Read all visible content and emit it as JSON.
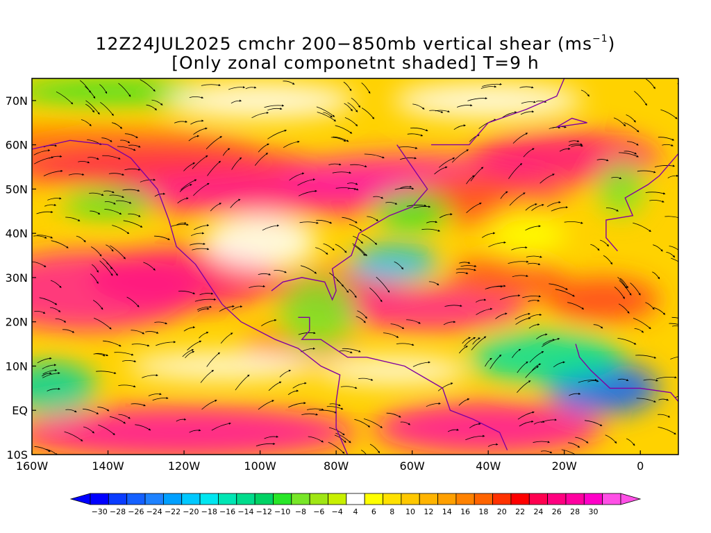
{
  "title": {
    "line1": "12Z24JUL2025 cmchr 200−850mb vertical shear (ms",
    "line1_unit_exp": "−1",
    "line1_close": ")",
    "line2": "[Only zonal componetnt shaded] T=9 h"
  },
  "map": {
    "lon_range": [
      -160,
      10
    ],
    "lat_range": [
      -10,
      75
    ],
    "lat_labels": [
      "70N",
      "60N",
      "50N",
      "40N",
      "30N",
      "20N",
      "10N",
      "EQ",
      "10S"
    ],
    "lon_labels": [
      "160W",
      "140W",
      "120W",
      "100W",
      "80W",
      "60W",
      "40W",
      "20W",
      "0"
    ]
  },
  "colorbar": {
    "labels": [
      "−30",
      "−28",
      "−26",
      "−24",
      "−22",
      "−20",
      "−18",
      "−16",
      "−14",
      "−12",
      "−10",
      "−8",
      "−6",
      "−4",
      "4",
      "6",
      "8",
      "10",
      "12",
      "14",
      "16",
      "18",
      "20",
      "22",
      "24",
      "26",
      "28",
      "30"
    ],
    "colors": [
      "#0000ff",
      "#0a3cff",
      "#1460ff",
      "#1e82ff",
      "#00a0ff",
      "#00c8ff",
      "#00e6f0",
      "#00e6b4",
      "#00dc8c",
      "#00d264",
      "#28e628",
      "#78e628",
      "#a0e614",
      "#c8f000",
      "#ffffff",
      "#ffff00",
      "#ffe100",
      "#ffc800",
      "#ffb400",
      "#ffa000",
      "#ff8200",
      "#ff6400",
      "#ff3200",
      "#ff0000",
      "#ff0050",
      "#ff0080",
      "#ff00a0",
      "#ff00c8",
      "#ff50e6"
    ]
  }
}
